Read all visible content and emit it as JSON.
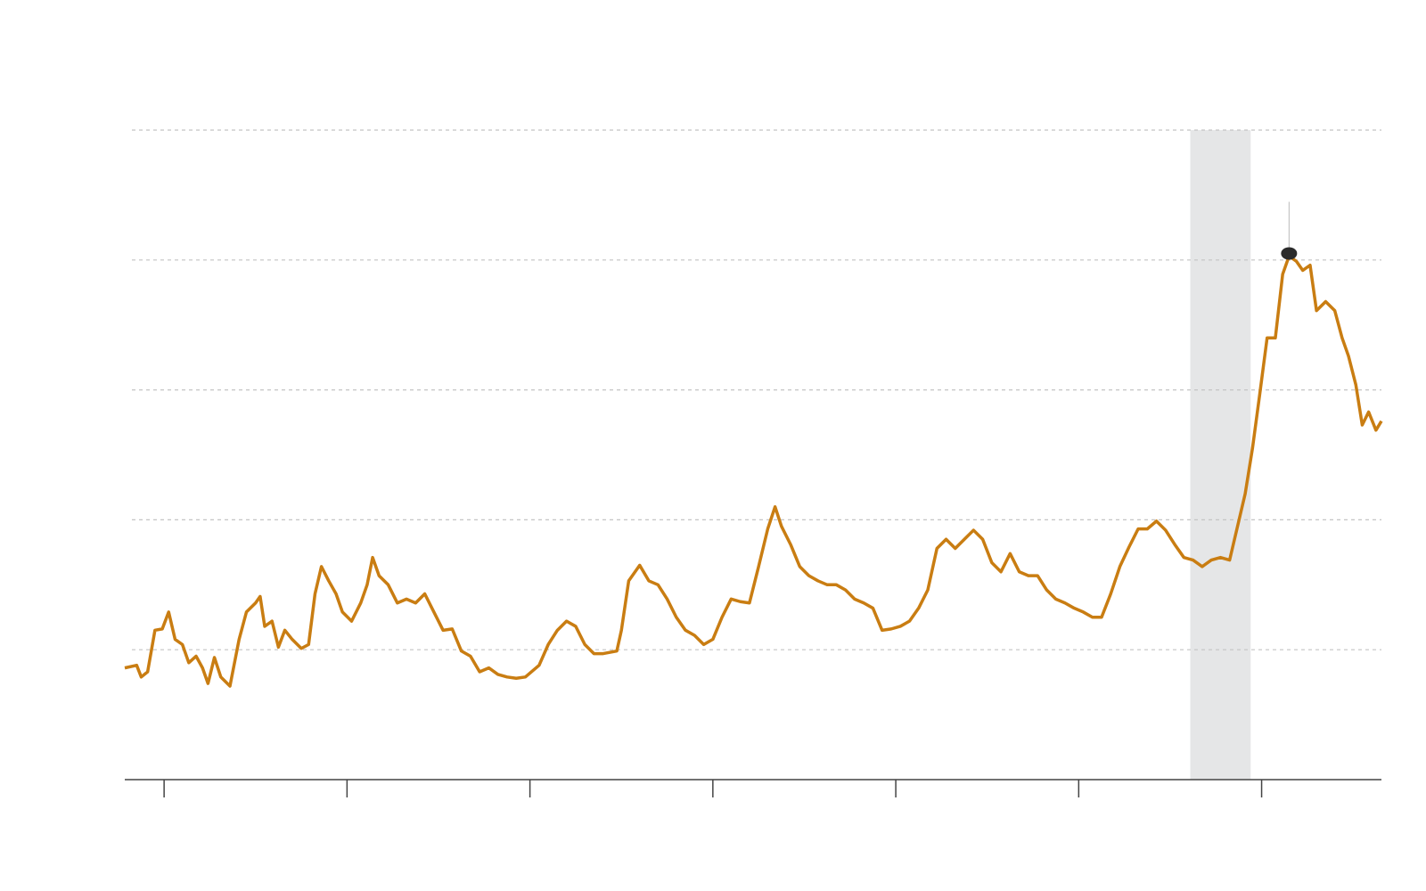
{
  "chart_data": {
    "type": "line",
    "x": [
      7.85,
      8.5,
      8.75,
      9.1,
      9.5,
      9.9,
      10.25,
      10.6,
      11,
      11.35,
      11.75,
      12.1,
      12.4,
      12.75,
      13.1,
      13.6,
      14.1,
      14.5,
      15,
      15.25,
      15.5,
      15.9,
      16.25,
      16.6,
      17,
      17.5,
      17.9,
      18.25,
      18.6,
      19,
      19.4,
      19.75,
      20.25,
      20.75,
      21.1,
      21.4,
      21.75,
      22.25,
      22.75,
      23.25,
      23.75,
      24.25,
      24.75,
      25.25,
      25.75,
      26.25,
      26.75,
      27.25,
      27.75,
      28.25,
      28.75,
      29.25,
      29.75,
      30.5,
      31,
      31.5,
      32,
      32.5,
      33,
      33.5,
      34,
      34.75,
      35,
      35.4,
      36,
      36.5,
      37,
      37.5,
      38,
      38.5,
      39,
      39.5,
      40,
      40.5,
      41,
      41.5,
      42,
      42.5,
      43,
      43.4,
      43.75,
      44.25,
      44.75,
      45.25,
      45.75,
      46.25,
      46.75,
      47.25,
      47.75,
      48.25,
      48.75,
      49.25,
      49.75,
      50.25,
      50.75,
      51.25,
      51.75,
      52.25,
      52.75,
      53.25,
      53.75,
      54.25,
      54.75,
      55.25,
      55.75,
      56.25,
      56.75,
      57.25,
      57.75,
      58.25,
      58.75,
      59.25,
      59.75,
      60.25,
      60.75,
      61.25,
      61.75,
      62.25,
      62.75,
      63.25,
      63.75,
      64.25,
      64.75,
      65.25,
      65.75,
      66.25,
      66.75,
      67.25,
      67.75,
      68.25,
      68.75,
      69.1,
      69.5,
      69.9,
      70.3,
      70.75,
      71.15,
      71.5,
      71.9,
      72.25,
      72.65,
      73,
      73.5,
      74,
      74.4,
      74.75,
      75.15,
      75.5,
      75.85,
      76.25,
      76.55
    ],
    "series": [
      {
        "color": "#c97d12",
        "values": [
          0.86,
          0.88,
          0.79,
          0.83,
          1.15,
          1.16,
          1.29,
          1.08,
          1.04,
          0.9,
          0.95,
          0.86,
          0.74,
          0.94,
          0.79,
          0.72,
          1.08,
          1.29,
          1.36,
          1.41,
          1.18,
          1.22,
          1.02,
          1.15,
          1.08,
          1.01,
          1.04,
          1.43,
          1.64,
          1.53,
          1.43,
          1.29,
          1.22,
          1.36,
          1.5,
          1.71,
          1.57,
          1.5,
          1.36,
          1.39,
          1.36,
          1.43,
          1.29,
          1.15,
          1.16,
          0.99,
          0.95,
          0.83,
          0.86,
          0.81,
          0.79,
          0.78,
          0.79,
          0.88,
          1.04,
          1.15,
          1.22,
          1.18,
          1.04,
          0.97,
          0.97,
          0.99,
          1.15,
          1.53,
          1.65,
          1.53,
          1.5,
          1.39,
          1.25,
          1.15,
          1.11,
          1.04,
          1.08,
          1.25,
          1.39,
          1.37,
          1.36,
          1.64,
          1.93,
          2.1,
          1.95,
          1.81,
          1.64,
          1.57,
          1.53,
          1.5,
          1.5,
          1.46,
          1.39,
          1.36,
          1.32,
          1.15,
          1.16,
          1.18,
          1.22,
          1.32,
          1.46,
          1.78,
          1.85,
          1.78,
          1.85,
          1.92,
          1.85,
          1.67,
          1.6,
          1.74,
          1.6,
          1.57,
          1.57,
          1.46,
          1.39,
          1.36,
          1.32,
          1.29,
          1.25,
          1.25,
          1.43,
          1.64,
          1.79,
          1.93,
          1.93,
          1.99,
          1.92,
          1.81,
          1.71,
          1.69,
          1.64,
          1.69,
          1.71,
          1.69,
          1.99,
          2.2,
          2.55,
          2.97,
          3.4,
          3.4,
          3.89,
          4.03,
          3.99,
          3.92,
          3.96,
          3.61,
          3.68,
          3.61,
          3.4,
          3.26,
          3.04,
          2.73,
          2.83,
          2.69,
          2.76
        ]
      }
    ],
    "xlim": [
      7.85,
      76.55
    ],
    "xticks": [
      10,
      20,
      30,
      40,
      50,
      60,
      70
    ],
    "ylim": [
      0,
      5
    ],
    "yticks": [
      1,
      2,
      3,
      4,
      5
    ],
    "grid": true,
    "shaded_range": [
      66.1,
      69.4
    ],
    "shade_color": "#e5e6e7",
    "highlight": {
      "x": 71.5,
      "y": 4.05,
      "color": "#2b2b2b"
    }
  }
}
